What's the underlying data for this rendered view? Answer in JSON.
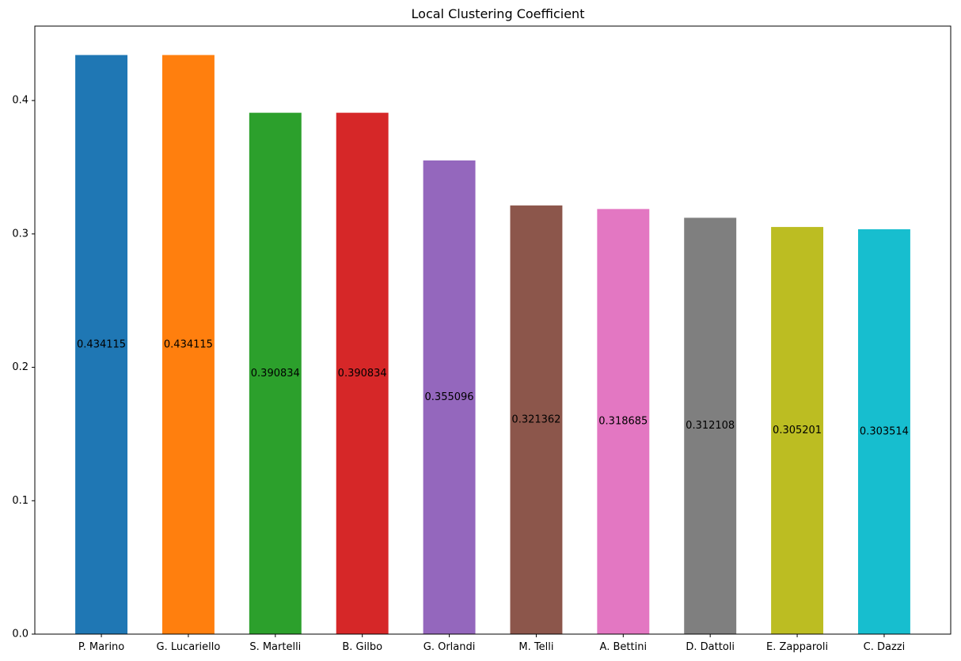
{
  "chart_data": {
    "type": "bar",
    "title": "Local Clustering Coefficient",
    "xlabel": "",
    "ylabel": "",
    "ylim": [
      0,
      0.4558
    ],
    "yticks": [
      0.0,
      0.1,
      0.2,
      0.3,
      0.4
    ],
    "ytick_labels": [
      "0.0",
      "0.1",
      "0.2",
      "0.3",
      "0.4"
    ],
    "grid": false,
    "categories": [
      "P. Marino",
      "G. Lucariello",
      "S. Martelli",
      "B. Gilbo",
      "G. Orlandi",
      "M. Telli",
      "A. Bettini",
      "D. Dattoli",
      "E. Zapparoli",
      "C. Dazzi"
    ],
    "values": [
      0.434115,
      0.434115,
      0.390834,
      0.390834,
      0.355096,
      0.321362,
      0.318685,
      0.312108,
      0.305201,
      0.303514
    ],
    "data_labels": [
      "0.434115",
      "0.434115",
      "0.390834",
      "0.390834",
      "0.355096",
      "0.321362",
      "0.318685",
      "0.312108",
      "0.305201",
      "0.303514"
    ],
    "colors": [
      "#1f77b4",
      "#ff7f0e",
      "#2ca02c",
      "#d62728",
      "#9467bd",
      "#8c564b",
      "#e377c2",
      "#7f7f7f",
      "#bcbd22",
      "#17becf"
    ]
  }
}
